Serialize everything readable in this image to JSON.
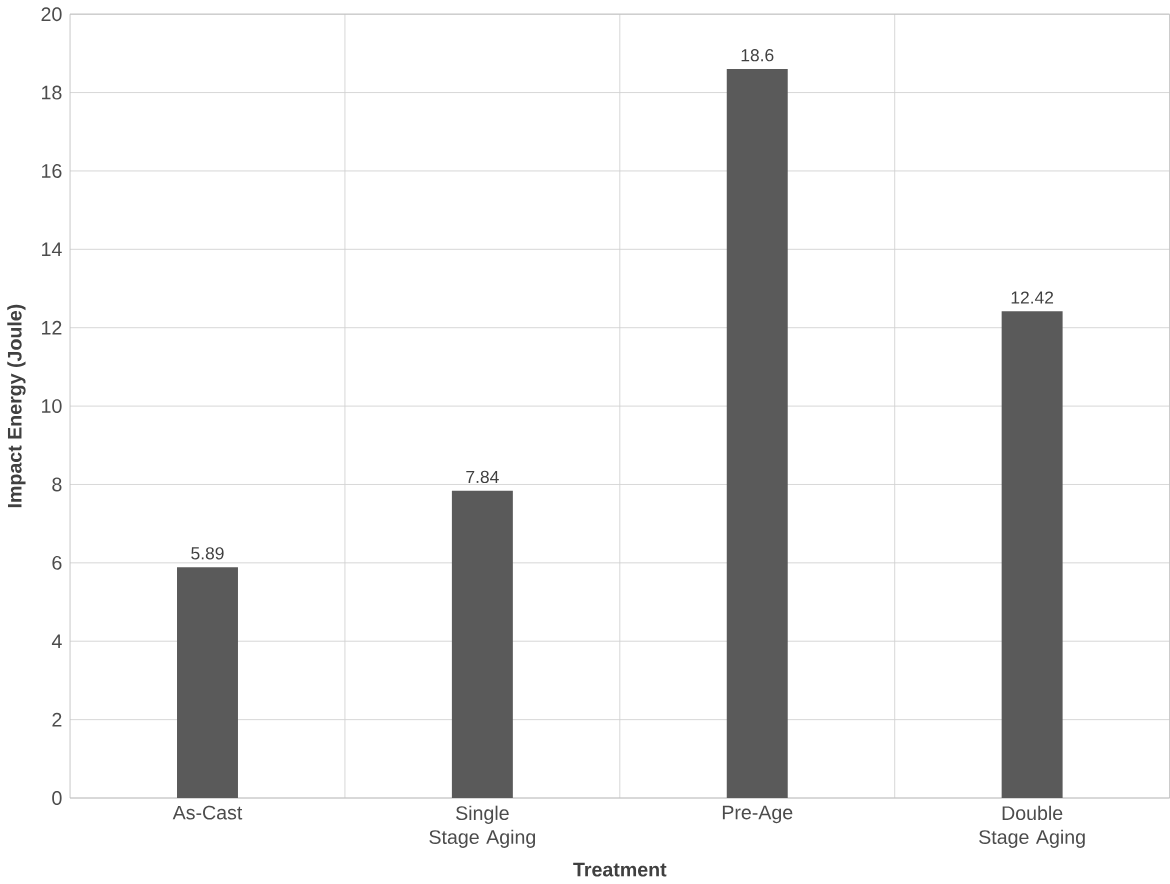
{
  "chart_data": {
    "type": "bar",
    "xlabel": "Treatment",
    "ylabel": "Impact Energy (Joule)",
    "categories": [
      "As-Cast",
      "Single Stage Aging",
      "Pre-Age",
      "Double Stage Aging"
    ],
    "values": [
      5.89,
      7.84,
      18.6,
      12.42
    ],
    "color": "#5a5a5a",
    "ylim": [
      0,
      20
    ],
    "yticks": [
      0,
      2,
      4,
      6,
      8,
      10,
      12,
      14,
      16,
      18,
      20
    ],
    "grid": true,
    "data_labels": true
  }
}
